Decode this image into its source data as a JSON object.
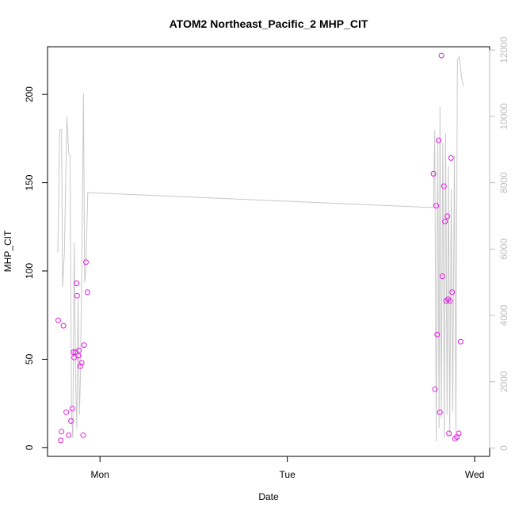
{
  "chart_data": {
    "type": "scatter",
    "title": "ATOM2 Northeast_Pacific_2 MHP_CIT",
    "xlabel": "Date",
    "ylabel": "MHP_CIT",
    "x_ticks": [
      "Mon",
      "Tue",
      "Wed"
    ],
    "x_tick_positions_days": [
      1,
      2,
      3
    ],
    "xlim_days": [
      0.72,
      3.08
    ],
    "ylim": [
      -5,
      227
    ],
    "y_ticks": [
      0,
      50,
      100,
      150,
      200
    ],
    "y2lim": [
      -250,
      12100
    ],
    "y2_ticks": [
      0,
      2000,
      4000,
      6000,
      8000,
      10000,
      12000
    ],
    "grid": false,
    "legend": "none",
    "colors": {
      "points": "#e31ae3",
      "line": "#c8c8c8",
      "right_axis": "#bdbdbd"
    },
    "series": [
      {
        "type": "scatter",
        "axis": "left",
        "x": [
          0.777,
          0.79,
          0.795,
          0.805,
          0.82,
          0.833,
          0.845,
          0.852,
          0.858,
          0.862,
          0.868,
          0.875,
          0.878,
          0.884,
          0.888,
          0.895,
          0.902,
          0.91,
          0.915,
          0.925,
          0.933,
          2.78,
          2.788,
          2.795,
          2.8,
          2.808,
          2.815,
          2.823,
          2.828,
          2.836,
          2.842,
          2.848,
          2.854,
          2.858,
          2.863,
          2.868,
          2.874,
          2.88,
          2.895,
          2.905,
          2.915,
          2.925
        ],
        "y": [
          72,
          4,
          9,
          69,
          20,
          7,
          15,
          22,
          54,
          51,
          54,
          93,
          86,
          52,
          55,
          46,
          48,
          7,
          58,
          105,
          88,
          155,
          33,
          137,
          64,
          174,
          20,
          222,
          97,
          148,
          128,
          83,
          131,
          84,
          8,
          83,
          164,
          88,
          5,
          6,
          8,
          60
        ]
      },
      {
        "type": "line",
        "axis": "right",
        "x": [
          0.775,
          0.785,
          0.795,
          0.8,
          0.81,
          0.823,
          0.833,
          0.84,
          0.848,
          0.855,
          0.862,
          0.87,
          0.876,
          0.883,
          0.89,
          0.896,
          0.904,
          0.912,
          0.918,
          0.924,
          0.935,
          0.945,
          2.78,
          2.787,
          2.795,
          2.803,
          2.81,
          2.815,
          2.822,
          2.83,
          2.838,
          2.845,
          2.853,
          2.86,
          2.867,
          2.875,
          2.883,
          2.892,
          2.9,
          2.908,
          2.918,
          2.93,
          2.94
        ],
        "y": [
          5900,
          9600,
          9600,
          4850,
          5900,
          10000,
          8900,
          8800,
          1000,
          300,
          6200,
          2100,
          600,
          4500,
          1000,
          2200,
          6200,
          10700,
          5000,
          5300,
          7700,
          7700,
          7250,
          9600,
          200,
          9300,
          600,
          10300,
          900,
          9200,
          300,
          9500,
          1000,
          8500,
          400,
          7800,
          1100,
          8800,
          500,
          11700,
          11800,
          11200,
          10900
        ]
      }
    ]
  }
}
